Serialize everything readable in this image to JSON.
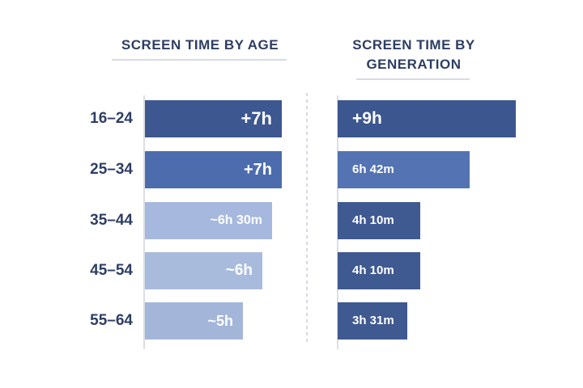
{
  "chart_data": [
    {
      "type": "bar",
      "orientation": "horizontal",
      "title": "SCREEN TIME BY AGE",
      "categories": [
        "16–24",
        "25–34",
        "35–44",
        "45–54",
        "55–64"
      ],
      "values": [
        7,
        7,
        6.5,
        6,
        5
      ],
      "labels": [
        "+7h",
        "+7h",
        "~6h 30m",
        "~6h",
        "~5h"
      ],
      "colors": [
        "#3d5790",
        "#4c6cad",
        "#a6b8dd",
        "#a9bbdd",
        "#a3b6da"
      ]
    },
    {
      "type": "bar",
      "orientation": "horizontal",
      "title": "SCREEN TIME BY GENERATION",
      "categories": [
        "16–24",
        "25–34",
        "35–44",
        "45–54",
        "55–64"
      ],
      "values": [
        9,
        6.7,
        4.17,
        4.17,
        3.52
      ],
      "labels": [
        "+9h",
        "6h 42m",
        "4h 10m",
        "4h 10m",
        "3h 31m"
      ],
      "colors": [
        "#3c568f",
        "#5473b3",
        "#3f5991",
        "#3f5991",
        "#3f5991"
      ]
    }
  ]
}
